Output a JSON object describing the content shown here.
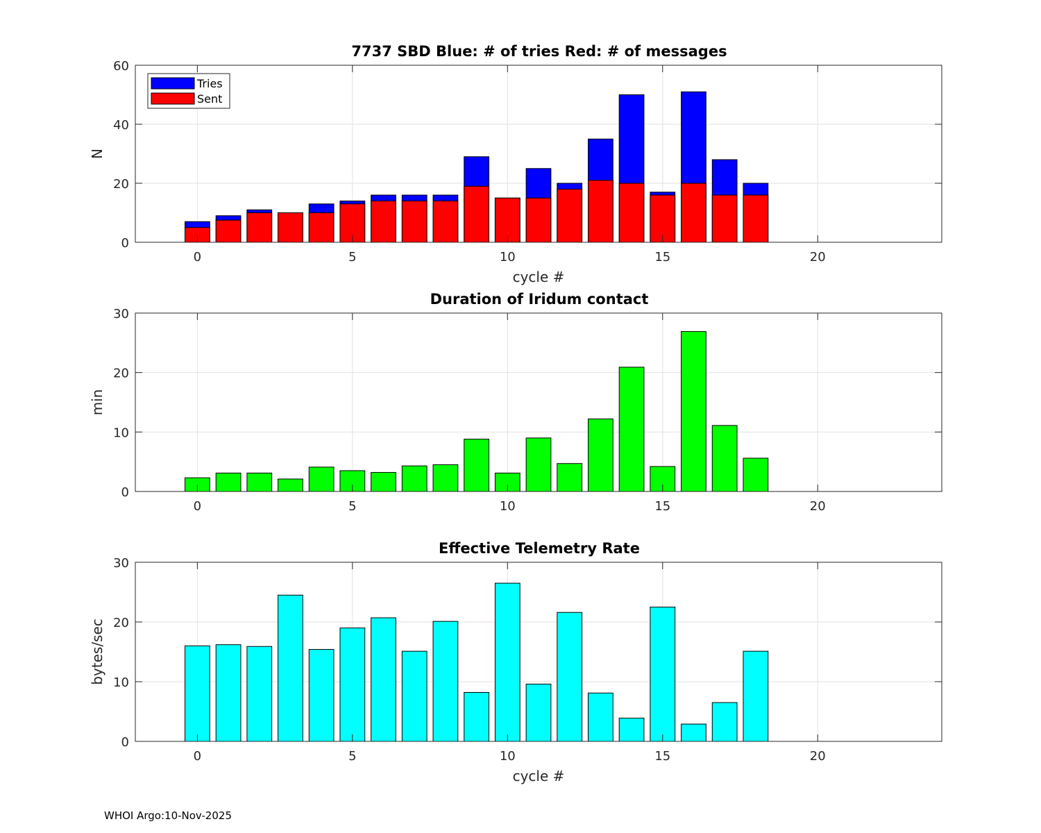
{
  "footer": "WHOI Argo:10-Nov-2025",
  "chart_data": [
    {
      "type": "bar",
      "stacked_overlay": true,
      "title": "7737 SBD  Blue: # of tries   Red: # of messages",
      "xlabel": "cycle #",
      "ylabel": "N",
      "xlim": [
        -2,
        24
      ],
      "ylim": [
        0,
        60
      ],
      "xticks": [
        0,
        5,
        10,
        15,
        20
      ],
      "yticks": [
        0,
        20,
        40,
        60
      ],
      "legend": "top-left",
      "x": [
        0,
        1,
        2,
        3,
        4,
        5,
        6,
        7,
        8,
        9,
        10,
        11,
        12,
        13,
        14,
        15,
        16,
        17,
        18
      ],
      "series": [
        {
          "name": "Tries",
          "color": "#0000ff",
          "values": [
            7,
            9,
            11,
            10,
            13,
            14,
            16,
            16,
            16,
            29,
            15,
            25,
            20,
            35,
            50,
            17,
            51,
            28,
            20
          ]
        },
        {
          "name": "Sent",
          "color": "#ff0000",
          "values": [
            5,
            7.5,
            10,
            10,
            10,
            13,
            14,
            14,
            14,
            19,
            15,
            15,
            18,
            21,
            20,
            16,
            20,
            16,
            16
          ]
        }
      ]
    },
    {
      "type": "bar",
      "title": "Duration of Iridum contact",
      "xlabel": "",
      "ylabel": "min",
      "xlim": [
        -2,
        24
      ],
      "ylim": [
        0,
        30
      ],
      "xticks": [
        0,
        5,
        10,
        15,
        20
      ],
      "yticks": [
        0,
        10,
        20,
        30
      ],
      "x": [
        0,
        1,
        2,
        3,
        4,
        5,
        6,
        7,
        8,
        9,
        10,
        11,
        12,
        13,
        14,
        15,
        16,
        17,
        18
      ],
      "series": [
        {
          "name": "Duration",
          "color": "#00ff00",
          "values": [
            2.3,
            3.1,
            3.1,
            2.1,
            4.1,
            3.5,
            3.2,
            4.3,
            4.5,
            8.8,
            3.1,
            9.0,
            4.7,
            12.2,
            20.9,
            4.2,
            26.9,
            11.1,
            5.6
          ]
        }
      ]
    },
    {
      "type": "bar",
      "title": "Effective Telemetry Rate",
      "xlabel": "cycle #",
      "ylabel": "bytes/sec",
      "xlim": [
        -2,
        24
      ],
      "ylim": [
        0,
        30
      ],
      "xticks": [
        0,
        5,
        10,
        15,
        20
      ],
      "yticks": [
        0,
        10,
        20,
        30
      ],
      "x": [
        0,
        1,
        2,
        3,
        4,
        5,
        6,
        7,
        8,
        9,
        10,
        11,
        12,
        13,
        14,
        15,
        16,
        17,
        18
      ],
      "series": [
        {
          "name": "Rate",
          "color": "#00ffff",
          "values": [
            16.0,
            16.2,
            15.9,
            24.5,
            15.4,
            19.0,
            20.7,
            15.1,
            20.1,
            8.2,
            26.5,
            9.6,
            21.6,
            8.1,
            3.9,
            22.5,
            2.9,
            6.5,
            15.1
          ]
        }
      ]
    }
  ]
}
